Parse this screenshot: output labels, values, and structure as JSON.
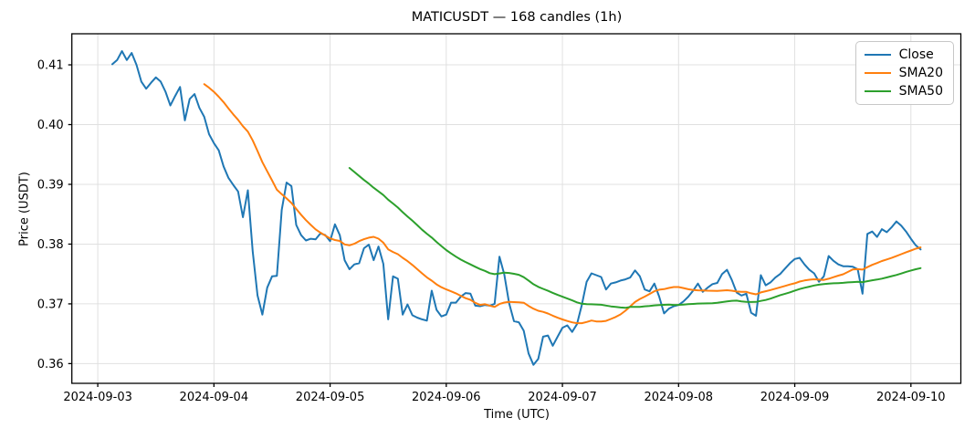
{
  "figure": {
    "title": "MATICUSDT — 168 candles (1h)",
    "xlabel": "Time (UTC)",
    "ylabel": "Price (USDT)",
    "background_color": "#ffffff",
    "grid_color": "#e0e0e0",
    "frame_color": "#000000",
    "text_color": "#000000"
  },
  "legend": {
    "position": "top-right",
    "items": [
      {
        "label": "Close",
        "color": "#1f77b4"
      },
      {
        "label": "SMA20",
        "color": "#ff7f0e"
      },
      {
        "label": "SMA50",
        "color": "#2ca02c"
      }
    ]
  },
  "chart_data": {
    "type": "line",
    "title": "MATICUSDT — 168 candles (1h)",
    "xlabel": "Time (UTC)",
    "ylabel": "Price (USDT)",
    "symbol": "MATICUSDT",
    "candle_count": 168,
    "candle_interval": "1h",
    "grid": true,
    "legend_position": "upper right",
    "x_tick_labels": [
      "2024-09-03",
      "2024-09-04",
      "2024-09-05",
      "2024-09-06",
      "2024-09-07",
      "2024-09-08",
      "2024-09-09",
      "2024-09-10"
    ],
    "x_tick_hour_index": [
      -3,
      21,
      45,
      69,
      93,
      117,
      141,
      165
    ],
    "y_ticks": [
      0.36,
      0.37,
      0.38,
      0.39,
      0.4,
      0.41
    ],
    "y_tick_labels": [
      "0.36",
      "0.37",
      "0.38",
      "0.39",
      "0.40",
      "0.41"
    ],
    "ylim": [
      0.3567,
      0.4152
    ],
    "series": [
      {
        "name": "Close",
        "color": "#1f77b4",
        "values": [
          0.4101,
          0.4108,
          0.4123,
          0.4108,
          0.412,
          0.41,
          0.4072,
          0.406,
          0.407,
          0.4079,
          0.4072,
          0.4055,
          0.4032,
          0.4048,
          0.4063,
          0.4007,
          0.4043,
          0.4051,
          0.4028,
          0.4013,
          0.3984,
          0.3969,
          0.3957,
          0.393,
          0.3911,
          0.3899,
          0.3888,
          0.3845,
          0.389,
          0.3788,
          0.3714,
          0.3682,
          0.3727,
          0.3746,
          0.3747,
          0.3857,
          0.3903,
          0.3897,
          0.3832,
          0.3815,
          0.3806,
          0.3809,
          0.3808,
          0.3818,
          0.3815,
          0.3805,
          0.3833,
          0.3815,
          0.3773,
          0.3758,
          0.3766,
          0.3768,
          0.3793,
          0.3799,
          0.3773,
          0.3796,
          0.3767,
          0.3674,
          0.3746,
          0.3742,
          0.3682,
          0.3699,
          0.3681,
          0.3677,
          0.3674,
          0.3672,
          0.3722,
          0.369,
          0.3679,
          0.3682,
          0.3702,
          0.3702,
          0.3712,
          0.3718,
          0.3717,
          0.3697,
          0.3696,
          0.3698,
          0.3697,
          0.37,
          0.3779,
          0.3749,
          0.3701,
          0.3671,
          0.3669,
          0.3655,
          0.3617,
          0.3598,
          0.3608,
          0.3645,
          0.3647,
          0.363,
          0.3645,
          0.366,
          0.3664,
          0.3653,
          0.3666,
          0.3698,
          0.3737,
          0.3751,
          0.3748,
          0.3745,
          0.3724,
          0.3734,
          0.3736,
          0.3739,
          0.3741,
          0.3744,
          0.3756,
          0.3746,
          0.3724,
          0.3721,
          0.3734,
          0.3712,
          0.3684,
          0.3692,
          0.3696,
          0.3698,
          0.3704,
          0.3712,
          0.3722,
          0.3734,
          0.372,
          0.3727,
          0.3733,
          0.3735,
          0.375,
          0.3757,
          0.374,
          0.3719,
          0.3714,
          0.3717,
          0.3685,
          0.368,
          0.3748,
          0.3731,
          0.3736,
          0.3744,
          0.375,
          0.3759,
          0.3768,
          0.3775,
          0.3777,
          0.3766,
          0.3757,
          0.3751,
          0.3737,
          0.3746,
          0.378,
          0.3772,
          0.3766,
          0.3763,
          0.3763,
          0.3762,
          0.3758,
          0.3717,
          0.3817,
          0.3821,
          0.3812,
          0.3825,
          0.382,
          0.3828,
          0.3838,
          0.3831,
          0.3821,
          0.3809,
          0.3798,
          0.3791
        ]
      },
      {
        "name": "SMA20",
        "color": "#ff7f0e",
        "derived": "rolling_mean",
        "window": 20,
        "of": "Close",
        "first_value": 0.4066,
        "last_value": 0.3793
      },
      {
        "name": "SMA50",
        "color": "#2ca02c",
        "derived": "rolling_mean",
        "window": 50,
        "of": "Close",
        "first_value": 0.3922,
        "last_value": 0.3755
      }
    ]
  }
}
